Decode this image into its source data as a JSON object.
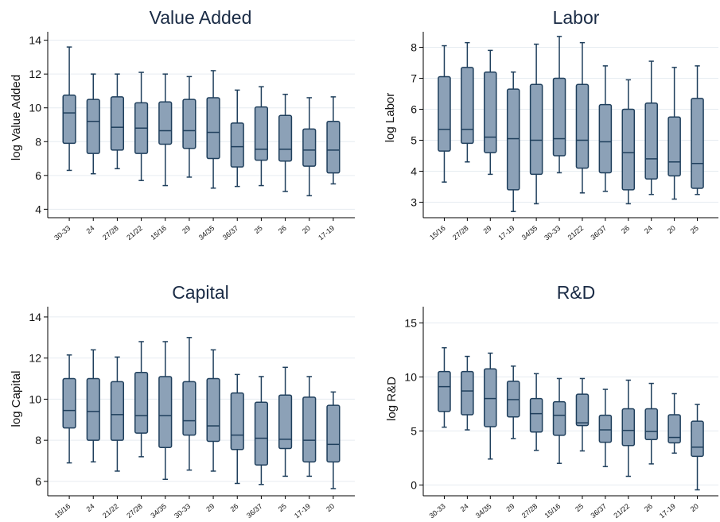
{
  "chart_data": [
    {
      "type": "box",
      "title": "Value Added",
      "ylabel": "log Value Added",
      "ylim": [
        3.5,
        14.5
      ],
      "yticks": [
        4,
        6,
        8,
        10,
        12,
        14
      ],
      "grid": true,
      "box_color": "#8ca1b7",
      "line_color": "#1f3f5c",
      "categories": [
        "30-33",
        "24",
        "27/28",
        "21/22",
        "15/16",
        "29",
        "34/35",
        "36/37",
        "25",
        "26",
        "20",
        "17-19"
      ],
      "boxes": [
        {
          "min": 6.3,
          "q1": 7.9,
          "median": 9.7,
          "q3": 10.75,
          "max": 13.6
        },
        {
          "min": 6.1,
          "q1": 7.3,
          "median": 9.2,
          "q3": 10.5,
          "max": 12.0
        },
        {
          "min": 6.4,
          "q1": 7.5,
          "median": 8.85,
          "q3": 10.65,
          "max": 12.0
        },
        {
          "min": 5.7,
          "q1": 7.3,
          "median": 8.8,
          "q3": 10.3,
          "max": 12.1
        },
        {
          "min": 5.4,
          "q1": 7.85,
          "median": 8.65,
          "q3": 10.35,
          "max": 12.0
        },
        {
          "min": 5.9,
          "q1": 7.6,
          "median": 8.65,
          "q3": 10.5,
          "max": 11.85
        },
        {
          "min": 5.25,
          "q1": 7.0,
          "median": 8.55,
          "q3": 10.6,
          "max": 12.2
        },
        {
          "min": 5.35,
          "q1": 6.5,
          "median": 7.7,
          "q3": 9.1,
          "max": 11.05
        },
        {
          "min": 5.4,
          "q1": 6.9,
          "median": 7.55,
          "q3": 10.05,
          "max": 11.25
        },
        {
          "min": 5.05,
          "q1": 6.85,
          "median": 7.55,
          "q3": 9.55,
          "max": 10.8
        },
        {
          "min": 4.8,
          "q1": 6.55,
          "median": 7.5,
          "q3": 8.75,
          "max": 10.6
        },
        {
          "min": 5.5,
          "q1": 6.15,
          "median": 7.5,
          "q3": 9.2,
          "max": 10.65
        }
      ]
    },
    {
      "type": "box",
      "title": "Labor",
      "ylabel": "log Labor",
      "ylim": [
        2.5,
        8.5
      ],
      "yticks": [
        3,
        4,
        5,
        6,
        7,
        8
      ],
      "grid": true,
      "box_color": "#8ca1b7",
      "line_color": "#1f3f5c",
      "categories": [
        "15/16",
        "27/28",
        "29",
        "17-19",
        "34/35",
        "30-33",
        "21/22",
        "36/37",
        "26",
        "24",
        "20",
        "25"
      ],
      "boxes": [
        {
          "min": 3.65,
          "q1": 4.65,
          "median": 5.35,
          "q3": 7.05,
          "max": 8.05
        },
        {
          "min": 4.3,
          "q1": 4.9,
          "median": 5.35,
          "q3": 7.35,
          "max": 8.15
        },
        {
          "min": 3.9,
          "q1": 4.6,
          "median": 5.1,
          "q3": 7.2,
          "max": 7.9
        },
        {
          "min": 2.7,
          "q1": 3.4,
          "median": 5.05,
          "q3": 6.65,
          "max": 7.2
        },
        {
          "min": 2.95,
          "q1": 3.9,
          "median": 5.0,
          "q3": 6.8,
          "max": 8.1
        },
        {
          "min": 3.95,
          "q1": 4.5,
          "median": 5.05,
          "q3": 7.0,
          "max": 8.35
        },
        {
          "min": 3.3,
          "q1": 4.1,
          "median": 5.0,
          "q3": 6.8,
          "max": 8.15
        },
        {
          "min": 3.35,
          "q1": 3.95,
          "median": 4.95,
          "q3": 6.15,
          "max": 7.4
        },
        {
          "min": 2.95,
          "q1": 3.4,
          "median": 4.6,
          "q3": 6.0,
          "max": 6.95
        },
        {
          "min": 3.25,
          "q1": 3.75,
          "median": 4.4,
          "q3": 6.2,
          "max": 7.55
        },
        {
          "min": 3.1,
          "q1": 3.85,
          "median": 4.3,
          "q3": 5.75,
          "max": 7.35
        },
        {
          "min": 3.25,
          "q1": 3.45,
          "median": 4.25,
          "q3": 6.35,
          "max": 7.4
        }
      ]
    },
    {
      "type": "box",
      "title": "Capital",
      "ylabel": "log Capital",
      "ylim": [
        5.3,
        14.5
      ],
      "yticks": [
        6,
        8,
        10,
        12,
        14
      ],
      "grid": true,
      "box_color": "#8ca1b7",
      "line_color": "#1f3f5c",
      "categories": [
        "15/16",
        "24",
        "21/22",
        "27/28",
        "34/35",
        "30-33",
        "29",
        "26",
        "36/37",
        "25",
        "17-19",
        "20"
      ],
      "boxes": [
        {
          "min": 6.9,
          "q1": 8.6,
          "median": 9.45,
          "q3": 11.0,
          "max": 12.15
        },
        {
          "min": 6.95,
          "q1": 8.0,
          "median": 9.4,
          "q3": 11.0,
          "max": 12.4
        },
        {
          "min": 6.5,
          "q1": 8.0,
          "median": 9.25,
          "q3": 10.85,
          "max": 12.05
        },
        {
          "min": 7.2,
          "q1": 8.35,
          "median": 9.2,
          "q3": 11.3,
          "max": 12.8
        },
        {
          "min": 6.1,
          "q1": 7.65,
          "median": 9.2,
          "q3": 11.1,
          "max": 12.8
        },
        {
          "min": 6.55,
          "q1": 8.25,
          "median": 8.95,
          "q3": 10.85,
          "max": 13.0
        },
        {
          "min": 6.5,
          "q1": 7.95,
          "median": 8.7,
          "q3": 11.0,
          "max": 12.4
        },
        {
          "min": 5.9,
          "q1": 7.55,
          "median": 8.25,
          "q3": 10.3,
          "max": 11.2
        },
        {
          "min": 5.85,
          "q1": 6.8,
          "median": 8.1,
          "q3": 9.85,
          "max": 11.1
        },
        {
          "min": 6.25,
          "q1": 7.6,
          "median": 8.05,
          "q3": 10.2,
          "max": 11.55
        },
        {
          "min": 6.25,
          "q1": 6.95,
          "median": 8.0,
          "q3": 10.1,
          "max": 11.1
        },
        {
          "min": 5.65,
          "q1": 6.95,
          "median": 7.8,
          "q3": 9.7,
          "max": 10.35
        }
      ]
    },
    {
      "type": "box",
      "title": "R&D",
      "ylabel": "log R&D",
      "ylim": [
        -1,
        16.5
      ],
      "yticks": [
        0,
        5,
        10,
        15
      ],
      "grid": true,
      "box_color": "#8ca1b7",
      "line_color": "#1f3f5c",
      "categories": [
        "30-33",
        "24",
        "34/35",
        "29",
        "27/28",
        "15/16",
        "25",
        "36/37",
        "21/22",
        "26",
        "17-19",
        "20"
      ],
      "boxes": [
        {
          "min": 5.35,
          "q1": 6.8,
          "median": 9.1,
          "q3": 10.5,
          "max": 12.7
        },
        {
          "min": 5.1,
          "q1": 6.5,
          "median": 8.7,
          "q3": 10.5,
          "max": 11.9
        },
        {
          "min": 2.4,
          "q1": 5.4,
          "median": 8.0,
          "q3": 10.75,
          "max": 12.2
        },
        {
          "min": 4.3,
          "q1": 6.3,
          "median": 7.9,
          "q3": 9.6,
          "max": 11.0
        },
        {
          "min": 3.2,
          "q1": 4.9,
          "median": 6.6,
          "q3": 8.0,
          "max": 10.3
        },
        {
          "min": 2.0,
          "q1": 4.6,
          "median": 6.45,
          "q3": 7.7,
          "max": 9.85
        },
        {
          "min": 3.15,
          "q1": 5.5,
          "median": 5.75,
          "q3": 8.4,
          "max": 9.85
        },
        {
          "min": 1.7,
          "q1": 3.95,
          "median": 5.1,
          "q3": 6.45,
          "max": 8.85
        },
        {
          "min": 0.8,
          "q1": 3.65,
          "median": 5.05,
          "q3": 7.05,
          "max": 9.7
        },
        {
          "min": 1.95,
          "q1": 4.2,
          "median": 4.95,
          "q3": 7.05,
          "max": 9.4
        },
        {
          "min": 2.95,
          "q1": 3.9,
          "median": 4.4,
          "q3": 6.5,
          "max": 8.45
        },
        {
          "min": -0.45,
          "q1": 2.65,
          "median": 3.5,
          "q3": 5.9,
          "max": 7.45
        }
      ]
    }
  ]
}
